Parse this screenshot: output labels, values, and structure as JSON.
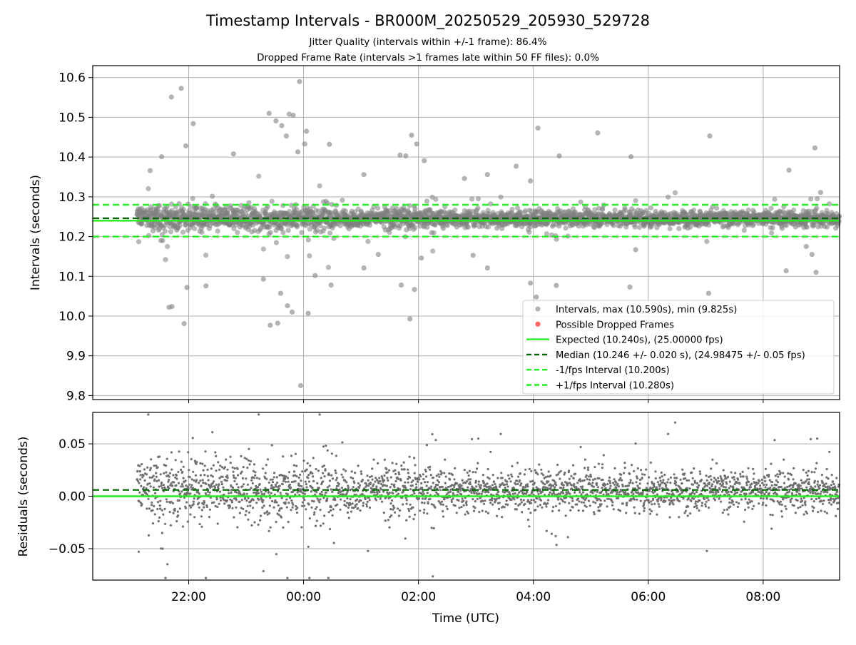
{
  "chart_data": [
    {
      "type": "scatter",
      "title": "Timestamp Intervals - BR000M_20250529_205930_529728",
      "subtitle_lines": [
        "Jitter Quality (intervals within +/-1 frame): 86.4%",
        "Dropped Frame Rate (intervals >1 frames late within 50 FF files): 0.0%"
      ],
      "ylabel": "Intervals (seconds)",
      "ylim": [
        9.79,
        10.63
      ],
      "yticks": [
        "9.8",
        "9.9",
        "10.0",
        "10.1",
        "10.2",
        "10.3",
        "10.4",
        "10.5",
        "10.6"
      ],
      "xlim_hours": [
        20.33,
        33.33
      ],
      "xticks": [
        "22:00",
        "00:00",
        "02:00",
        "04:00",
        "06:00",
        "08:00"
      ],
      "grid": true,
      "legend_placement": "lower-right",
      "lines": {
        "expected": 10.24,
        "median": 10.246,
        "minus_1fps": 10.2,
        "plus_1fps": 10.28
      },
      "colors": {
        "points": "#808080",
        "dropped": "#ff4040",
        "expected": "#22ee22",
        "median": "#006400",
        "interval": "#22ee22"
      },
      "series": [
        {
          "name": "Intervals, max (10.590s), min (9.825s)",
          "kind": "points"
        },
        {
          "name": "Possible Dropped Frames",
          "kind": "dropped",
          "values": []
        }
      ],
      "legend": [
        {
          "label": "Intervals, max (10.590s), min (9.825s)",
          "style": "point-gray"
        },
        {
          "label": "Possible Dropped Frames",
          "style": "point-red"
        },
        {
          "label": "Expected (10.240s), (25.00000 fps)",
          "style": "line-expected"
        },
        {
          "label": "Median (10.246 +/- 0.020 s), (24.98475 +/- 0.05 fps)",
          "style": "line-median"
        },
        {
          "label": "-1/fps Interval (10.200s)",
          "style": "line-interval"
        },
        {
          "label": "+1/fps Interval (10.280s)",
          "style": "line-interval"
        }
      ],
      "outliers": [
        {
          "t": 21.7,
          "y": 10.551
        },
        {
          "t": 21.87,
          "y": 10.573
        },
        {
          "t": 22.08,
          "y": 10.484
        },
        {
          "t": 21.95,
          "y": 10.428
        },
        {
          "t": 21.66,
          "y": 10.022
        },
        {
          "t": 21.71,
          "y": 10.024
        },
        {
          "t": 21.92,
          "y": 9.981
        },
        {
          "t": 21.97,
          "y": 10.072
        },
        {
          "t": 22.3,
          "y": 10.076
        },
        {
          "t": 21.53,
          "y": 10.401
        },
        {
          "t": 21.33,
          "y": 10.366
        },
        {
          "t": 23.4,
          "y": 10.51
        },
        {
          "t": 23.52,
          "y": 10.491
        },
        {
          "t": 23.75,
          "y": 10.508
        },
        {
          "t": 23.82,
          "y": 10.505
        },
        {
          "t": 23.62,
          "y": 10.479
        },
        {
          "t": 23.7,
          "y": 10.453
        },
        {
          "t": 23.9,
          "y": 10.413
        },
        {
          "t": 23.95,
          "y": 9.825
        },
        {
          "t": 23.93,
          "y": 10.59
        },
        {
          "t": 24.05,
          "y": 10.465
        },
        {
          "t": 24.02,
          "y": 10.433
        },
        {
          "t": 24.08,
          "y": 10.007
        },
        {
          "t": 23.55,
          "y": 9.982
        },
        {
          "t": 23.42,
          "y": 9.977
        },
        {
          "t": 23.72,
          "y": 10.026
        },
        {
          "t": 23.8,
          "y": 10.01
        },
        {
          "t": 23.6,
          "y": 10.057
        },
        {
          "t": 24.45,
          "y": 10.432
        },
        {
          "t": 24.48,
          "y": 10.078
        },
        {
          "t": 22.78,
          "y": 10.408
        },
        {
          "t": 23.3,
          "y": 10.093
        },
        {
          "t": 24.2,
          "y": 10.102
        },
        {
          "t": 25.05,
          "y": 10.356
        },
        {
          "t": 25.05,
          "y": 10.121
        },
        {
          "t": 25.3,
          "y": 10.155
        },
        {
          "t": 25.68,
          "y": 10.405
        },
        {
          "t": 25.78,
          "y": 10.403
        },
        {
          "t": 25.7,
          "y": 10.078
        },
        {
          "t": 25.88,
          "y": 10.455
        },
        {
          "t": 25.97,
          "y": 10.433
        },
        {
          "t": 25.93,
          "y": 10.067
        },
        {
          "t": 25.85,
          "y": 9.993
        },
        {
          "t": 26.1,
          "y": 10.391
        },
        {
          "t": 26.05,
          "y": 10.146
        },
        {
          "t": 26.8,
          "y": 10.346
        },
        {
          "t": 26.95,
          "y": 10.153
        },
        {
          "t": 27.2,
          "y": 10.356
        },
        {
          "t": 27.2,
          "y": 10.121
        },
        {
          "t": 27.7,
          "y": 10.377
        },
        {
          "t": 27.95,
          "y": 10.34
        },
        {
          "t": 27.95,
          "y": 10.083
        },
        {
          "t": 28.08,
          "y": 10.473
        },
        {
          "t": 28.05,
          "y": 10.048
        },
        {
          "t": 28.4,
          "y": 10.077
        },
        {
          "t": 28.45,
          "y": 10.403
        },
        {
          "t": 29.12,
          "y": 10.461
        },
        {
          "t": 29.7,
          "y": 10.401
        },
        {
          "t": 29.78,
          "y": 10.167
        },
        {
          "t": 29.68,
          "y": 10.073
        },
        {
          "t": 31.07,
          "y": 10.453
        },
        {
          "t": 31.05,
          "y": 10.057
        },
        {
          "t": 32.45,
          "y": 10.367
        },
        {
          "t": 32.4,
          "y": 10.114
        },
        {
          "t": 32.9,
          "y": 10.423
        },
        {
          "t": 32.92,
          "y": 10.11
        },
        {
          "t": 32.75,
          "y": 10.175
        },
        {
          "t": 32.85,
          "y": 10.155
        },
        {
          "t": 33.0,
          "y": 10.311
        }
      ]
    },
    {
      "type": "scatter",
      "ylabel": "Residuals (seconds)",
      "xlabel": "Time (UTC)",
      "ylim": [
        -0.08,
        0.08
      ],
      "yticks": [
        "−0.05",
        "0.00",
        "0.05"
      ],
      "xticks": [
        "22:00",
        "00:00",
        "02:00",
        "04:00",
        "06:00",
        "08:00"
      ],
      "grid": true,
      "lines": {
        "zero": 0.0,
        "median": 0.006
      }
    }
  ]
}
